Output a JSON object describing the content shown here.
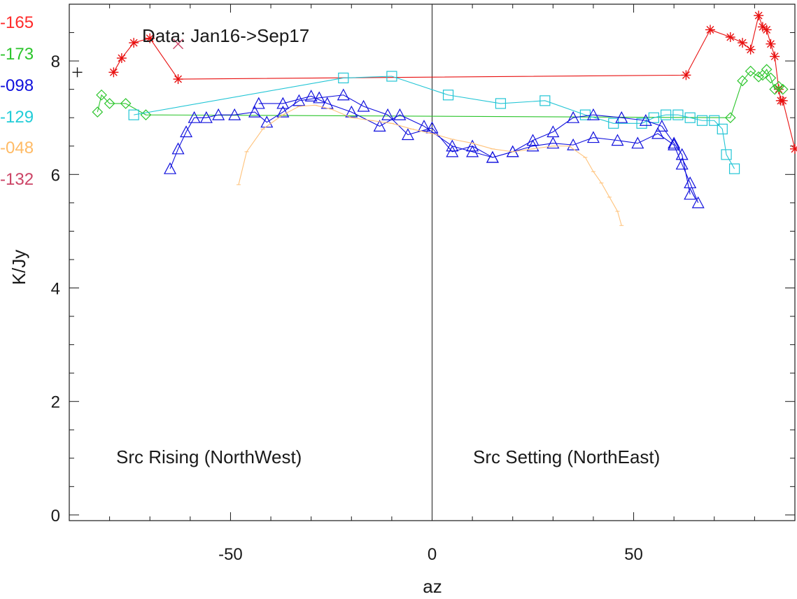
{
  "chart_data": {
    "type": "line",
    "title": "",
    "xlabel": "az",
    "ylabel": "K/Jy",
    "xlim": [
      -90,
      90
    ],
    "ylim": [
      -0.1,
      9.0
    ],
    "x_ticks": [
      -50,
      0,
      50
    ],
    "y_ticks": [
      0,
      2,
      4,
      6,
      8
    ],
    "grid": false,
    "legend_position": "left, outside plot area",
    "zero_line_x": 0,
    "annotations": {
      "data_range": "Data: Jan16->Sep17",
      "rising": "Src Rising (NorthWest)",
      "setting": "Src Setting (NorthEast)"
    },
    "legend": [
      {
        "label": "-165",
        "color": "#ff2a2a"
      },
      {
        "label": "-173",
        "color": "#2cc52c"
      },
      {
        "label": "-098",
        "color": "#1010dd"
      },
      {
        "label": "-129",
        "color": "#22cdd8"
      },
      {
        "label": "-048",
        "color": "#ffbb66"
      },
      {
        "label": "-132",
        "color": "#cc4466"
      }
    ],
    "series": [
      {
        "name": "-165",
        "color": "#e81010",
        "marker": "asterisk",
        "x": [
          -79,
          -77,
          -74,
          -70,
          -63,
          63,
          69,
          74,
          77,
          79,
          81,
          82,
          83,
          84,
          85,
          86,
          86.5,
          87,
          90
        ],
        "y": [
          7.8,
          8.05,
          8.32,
          8.4,
          7.68,
          7.75,
          8.55,
          8.42,
          8.32,
          8.2,
          8.8,
          8.6,
          8.55,
          8.3,
          8.08,
          7.5,
          7.3,
          7.3,
          6.45
        ]
      },
      {
        "name": "-173",
        "color": "#2cc52c",
        "marker": "diamond",
        "x": [
          -83,
          -82,
          -80,
          -76,
          -71,
          74,
          77,
          79,
          81,
          82,
          83,
          84,
          85,
          86,
          87
        ],
        "y": [
          7.1,
          7.4,
          7.25,
          7.25,
          7.05,
          7.0,
          7.65,
          7.82,
          7.72,
          7.75,
          7.85,
          7.7,
          7.5,
          7.55,
          7.5
        ]
      },
      {
        "name": "-129",
        "color": "#22c5d5",
        "marker": "square",
        "x": [
          -74,
          -22,
          -10,
          4,
          17,
          28,
          38,
          45,
          52,
          55,
          58,
          61,
          64,
          67,
          70,
          72,
          73,
          75
        ],
        "y": [
          7.05,
          7.7,
          7.73,
          7.4,
          7.25,
          7.3,
          7.05,
          6.9,
          6.9,
          7.0,
          7.05,
          7.05,
          7.0,
          6.95,
          6.95,
          6.8,
          6.35,
          6.1
        ]
      },
      {
        "name": "-098a",
        "color": "#1010dd",
        "marker": "triangle",
        "x": [
          -65,
          -63,
          -61,
          -59,
          -56,
          -53,
          -49,
          -44,
          -41,
          -37,
          -33,
          -28,
          -22,
          -17,
          -11,
          -6,
          0,
          5,
          10,
          15,
          20,
          25,
          30,
          35,
          40,
          46,
          51,
          56,
          60,
          62,
          64,
          66
        ],
        "y": [
          6.1,
          6.45,
          6.75,
          7.0,
          7.0,
          7.05,
          7.05,
          7.1,
          6.92,
          7.1,
          7.3,
          7.35,
          7.4,
          7.2,
          7.05,
          6.7,
          6.82,
          6.4,
          6.5,
          6.3,
          6.4,
          6.5,
          6.55,
          6.52,
          6.65,
          6.6,
          6.55,
          6.72,
          6.52,
          6.18,
          5.85,
          5.5
        ]
      },
      {
        "name": "-098b",
        "color": "#1010dd",
        "marker": "triangle",
        "x": [
          -43,
          -37,
          -30,
          -26,
          -20,
          -13,
          -8,
          -2,
          5,
          10,
          15,
          20,
          25,
          30,
          35,
          40,
          47,
          53,
          57,
          60,
          62,
          64
        ],
        "y": [
          7.25,
          7.25,
          7.38,
          7.25,
          7.1,
          6.85,
          7.05,
          6.85,
          6.5,
          6.4,
          6.3,
          6.4,
          6.6,
          6.75,
          7.0,
          7.05,
          7.0,
          6.95,
          6.85,
          6.55,
          6.35,
          5.65
        ]
      },
      {
        "name": "-048",
        "color": "#ffc27a",
        "marker": "small-tick",
        "x": [
          -48,
          -46,
          -42,
          -37,
          -33,
          -29,
          -25,
          -20,
          -15,
          -10,
          -5,
          0,
          5,
          10,
          15,
          20,
          25,
          30,
          34,
          38,
          40,
          42,
          44,
          46,
          47
        ],
        "y": [
          5.82,
          6.4,
          6.8,
          7.05,
          7.2,
          7.22,
          7.15,
          7.0,
          6.95,
          6.9,
          6.8,
          6.72,
          6.62,
          6.55,
          6.45,
          6.4,
          6.45,
          6.5,
          6.5,
          6.3,
          6.05,
          5.85,
          5.6,
          5.35,
          5.1
        ]
      },
      {
        "name": "-132",
        "color": "#cc4466",
        "marker": "cross",
        "x": [
          -63
        ],
        "y": [
          8.3
        ]
      }
    ],
    "extra_marker": {
      "x": -88,
      "y": 7.8,
      "color": "#1a1a1a",
      "marker": "plus"
    }
  }
}
